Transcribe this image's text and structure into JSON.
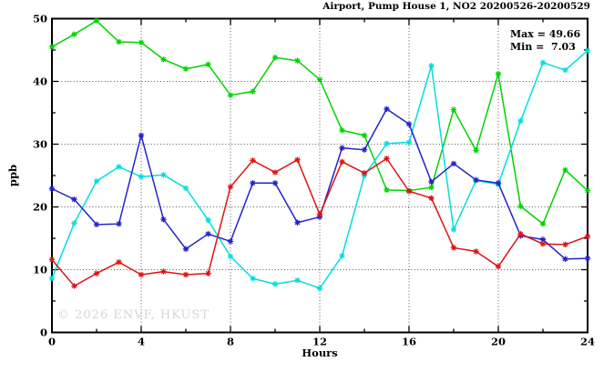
{
  "header": {
    "title": "Airport, Pump House 1, NO2 20200526-20200529"
  },
  "annotations": {
    "max_label": "Max = 49.66",
    "min_label": "Min =  7.03",
    "watermark": "© 2026 ENVF, HKUST"
  },
  "chart_data": {
    "type": "line",
    "title": "Airport, Pump House 1, NO2 20200526-20200529",
    "xlabel": "Hours",
    "ylabel": "ppb",
    "xlim": [
      0,
      24
    ],
    "ylim": [
      0,
      50
    ],
    "xticks_major": [
      0,
      4,
      8,
      12,
      16,
      20,
      24
    ],
    "xticks_minor": [
      2,
      6,
      10,
      14,
      18,
      22
    ],
    "yticks_major": [
      0,
      10,
      20,
      30,
      40,
      50
    ],
    "yticks_minor": [
      5,
      15,
      25,
      35,
      45
    ],
    "grid_x": [
      4,
      8,
      12,
      16,
      20
    ],
    "grid_y": [
      10,
      20,
      30,
      40
    ],
    "grid_on": true,
    "legend": "none",
    "marker": "asterisk",
    "x": [
      0,
      1,
      2,
      3,
      4,
      5,
      6,
      7,
      8,
      9,
      10,
      11,
      12,
      13,
      14,
      15,
      16,
      17,
      18,
      19,
      20,
      21,
      22,
      23,
      24
    ],
    "series": [
      {
        "name": "green",
        "color": "#00d400",
        "values": [
          45.5,
          47.5,
          49.66,
          46.3,
          46.2,
          43.5,
          42.0,
          42.7,
          37.8,
          38.4,
          43.8,
          43.3,
          40.3,
          32.2,
          31.4,
          22.7,
          22.6,
          23.1,
          35.5,
          29.0,
          41.2,
          20.1,
          17.3,
          25.9,
          22.6
        ]
      },
      {
        "name": "cyan",
        "color": "#00dede",
        "values": [
          8.6,
          17.4,
          24.1,
          26.4,
          24.8,
          25.1,
          23.0,
          17.9,
          12.1,
          8.6,
          7.7,
          8.3,
          7.03,
          12.2,
          25.0,
          30.1,
          30.3,
          42.5,
          16.4,
          24.2,
          23.6,
          33.7,
          43.0,
          41.8,
          44.9
        ]
      },
      {
        "name": "blue",
        "color": "#2222cc",
        "values": [
          22.9,
          21.2,
          17.2,
          17.3,
          31.4,
          18.0,
          13.3,
          15.7,
          14.5,
          23.8,
          23.8,
          17.5,
          18.4,
          29.4,
          29.1,
          35.6,
          33.2,
          24.0,
          26.9,
          24.3,
          23.8,
          15.4,
          14.8,
          11.7,
          11.8
        ]
      },
      {
        "name": "red",
        "color": "#e01212",
        "values": [
          11.6,
          7.4,
          9.4,
          11.2,
          9.2,
          9.7,
          9.2,
          9.4,
          23.2,
          27.4,
          25.5,
          27.5,
          18.8,
          27.2,
          25.4,
          27.7,
          22.5,
          21.4,
          13.5,
          12.9,
          10.5,
          15.7,
          14.1,
          14.0,
          15.3
        ]
      }
    ],
    "stats": {
      "max": 49.66,
      "min": 7.03
    },
    "axis_color": "#000000",
    "grid_color": "#555555",
    "background": "#ffffff"
  }
}
